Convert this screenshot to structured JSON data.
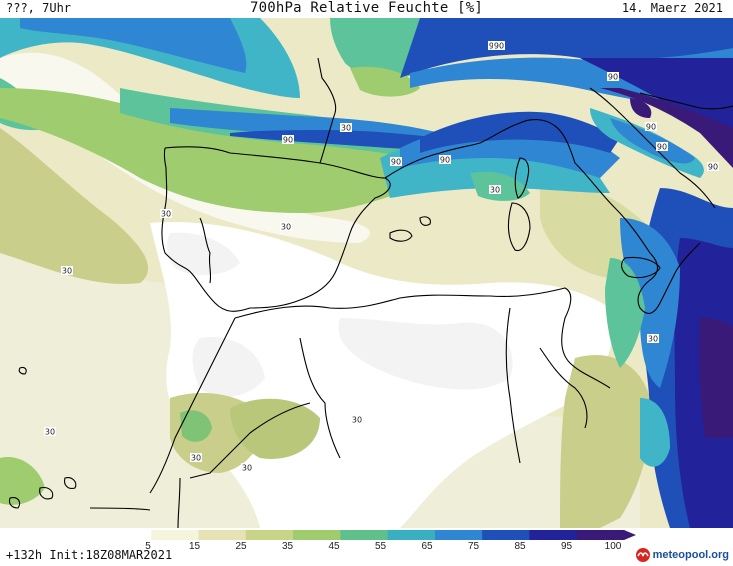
{
  "header": {
    "left": "???, 7Uhr",
    "title": "700hPa Relative Feuchte [%]",
    "date": "14. Maerz 2021"
  },
  "footer": {
    "run_info": "+132h  Init:18Z08MAR2021",
    "brand": "meteopool.org"
  },
  "colorbar": {
    "labels": [
      "5",
      "15",
      "25",
      "35",
      "45",
      "55",
      "65",
      "75",
      "85",
      "95",
      "100"
    ],
    "colors": [
      "#ffffff",
      "#f5f5dc",
      "#e6e2b4",
      "#c8d488",
      "#9fcc6e",
      "#5fc08c",
      "#39b0c0",
      "#2f86d2",
      "#1f4fb8",
      "#22239a",
      "#3a1a78"
    ]
  },
  "contour_labels": [
    "90",
    "90",
    "90",
    "90",
    "90",
    "90",
    "90",
    "90",
    "90",
    "30",
    "30",
    "30",
    "30",
    "30",
    "30",
    "30",
    "30",
    "30",
    "30"
  ],
  "colors": {
    "sea_outline": "#000000",
    "low": "#ffffff",
    "dry": "#f3f3ef",
    "pale": "#eeeed6",
    "beige": "#e6e2b4",
    "olive": "#c9cf8a",
    "green": "#9fcc6e",
    "teal": "#5cc39b",
    "cyan": "#40b5c8",
    "blue": "#2f86d2",
    "deep": "#1f4fb8",
    "navy": "#22239a",
    "purple": "#3a1a78"
  }
}
